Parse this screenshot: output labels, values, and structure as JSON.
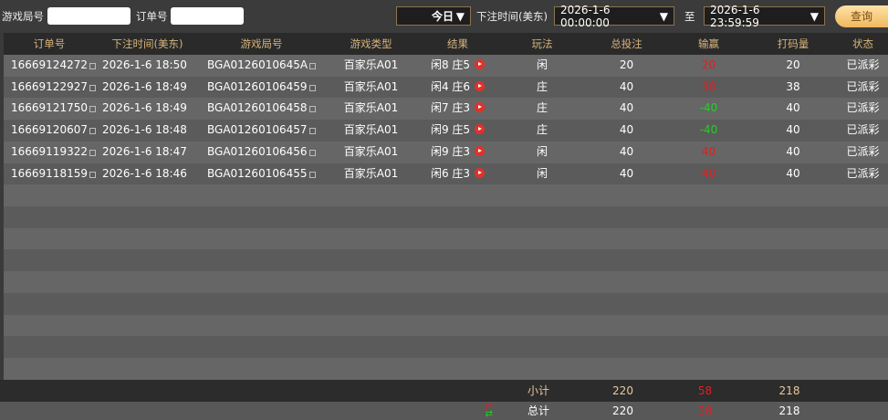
{
  "filters": {
    "game_round_label": "游戏局号",
    "game_round_value": "",
    "order_label": "订单号",
    "order_value": "",
    "period": "今日",
    "bet_time_label": "下注时间(美东)",
    "start": "2026-1-6 00:00:00",
    "to_label": "至",
    "end": "2026-1-6 23:59:59",
    "query_button": "查询"
  },
  "columns": [
    "订单号",
    "下注时间(美东)",
    "游戏局号",
    "游戏类型",
    "结果",
    "玩法",
    "总投注",
    "输赢",
    "打码量",
    "状态"
  ],
  "rows": [
    {
      "order": "16669124272",
      "time": "2026-1-6 18:50",
      "round": "BGA0126010645A",
      "type": "百家乐A01",
      "result": "闲8 庄5",
      "play": "闲",
      "bet": "20",
      "win": "20",
      "win_color": "red",
      "valid": "20",
      "status": "已派彩"
    },
    {
      "order": "16669122927",
      "time": "2026-1-6 18:49",
      "round": "BGA01260106459",
      "type": "百家乐A01",
      "result": "闲4 庄6",
      "play": "庄",
      "bet": "40",
      "win": "38",
      "win_color": "red",
      "valid": "38",
      "status": "已派彩"
    },
    {
      "order": "16669121750",
      "time": "2026-1-6 18:49",
      "round": "BGA01260106458",
      "type": "百家乐A01",
      "result": "闲7 庄3",
      "play": "庄",
      "bet": "40",
      "win": "-40",
      "win_color": "green",
      "valid": "40",
      "status": "已派彩"
    },
    {
      "order": "16669120607",
      "time": "2026-1-6 18:48",
      "round": "BGA01260106457",
      "type": "百家乐A01",
      "result": "闲9 庄5",
      "play": "庄",
      "bet": "40",
      "win": "-40",
      "win_color": "green",
      "valid": "40",
      "status": "已派彩"
    },
    {
      "order": "16669119322",
      "time": "2026-1-6 18:47",
      "round": "BGA01260106456",
      "type": "百家乐A01",
      "result": "闲9 庄3",
      "play": "闲",
      "bet": "40",
      "win": "40",
      "win_color": "red",
      "valid": "40",
      "status": "已派彩"
    },
    {
      "order": "16669118159",
      "time": "2026-1-6 18:46",
      "round": "BGA01260106455",
      "type": "百家乐A01",
      "result": "闲6 庄3",
      "play": "闲",
      "bet": "40",
      "win": "40",
      "win_color": "red",
      "valid": "40",
      "status": "已派彩"
    }
  ],
  "subtotal": {
    "label": "小计",
    "bet": "220",
    "win": "58",
    "valid": "218"
  },
  "total": {
    "label": "总计",
    "bet": "220",
    "win": "58",
    "valid": "218"
  },
  "colors": {
    "header_text": "#d6b37a",
    "win": "#e02020",
    "loss": "#22d022"
  }
}
